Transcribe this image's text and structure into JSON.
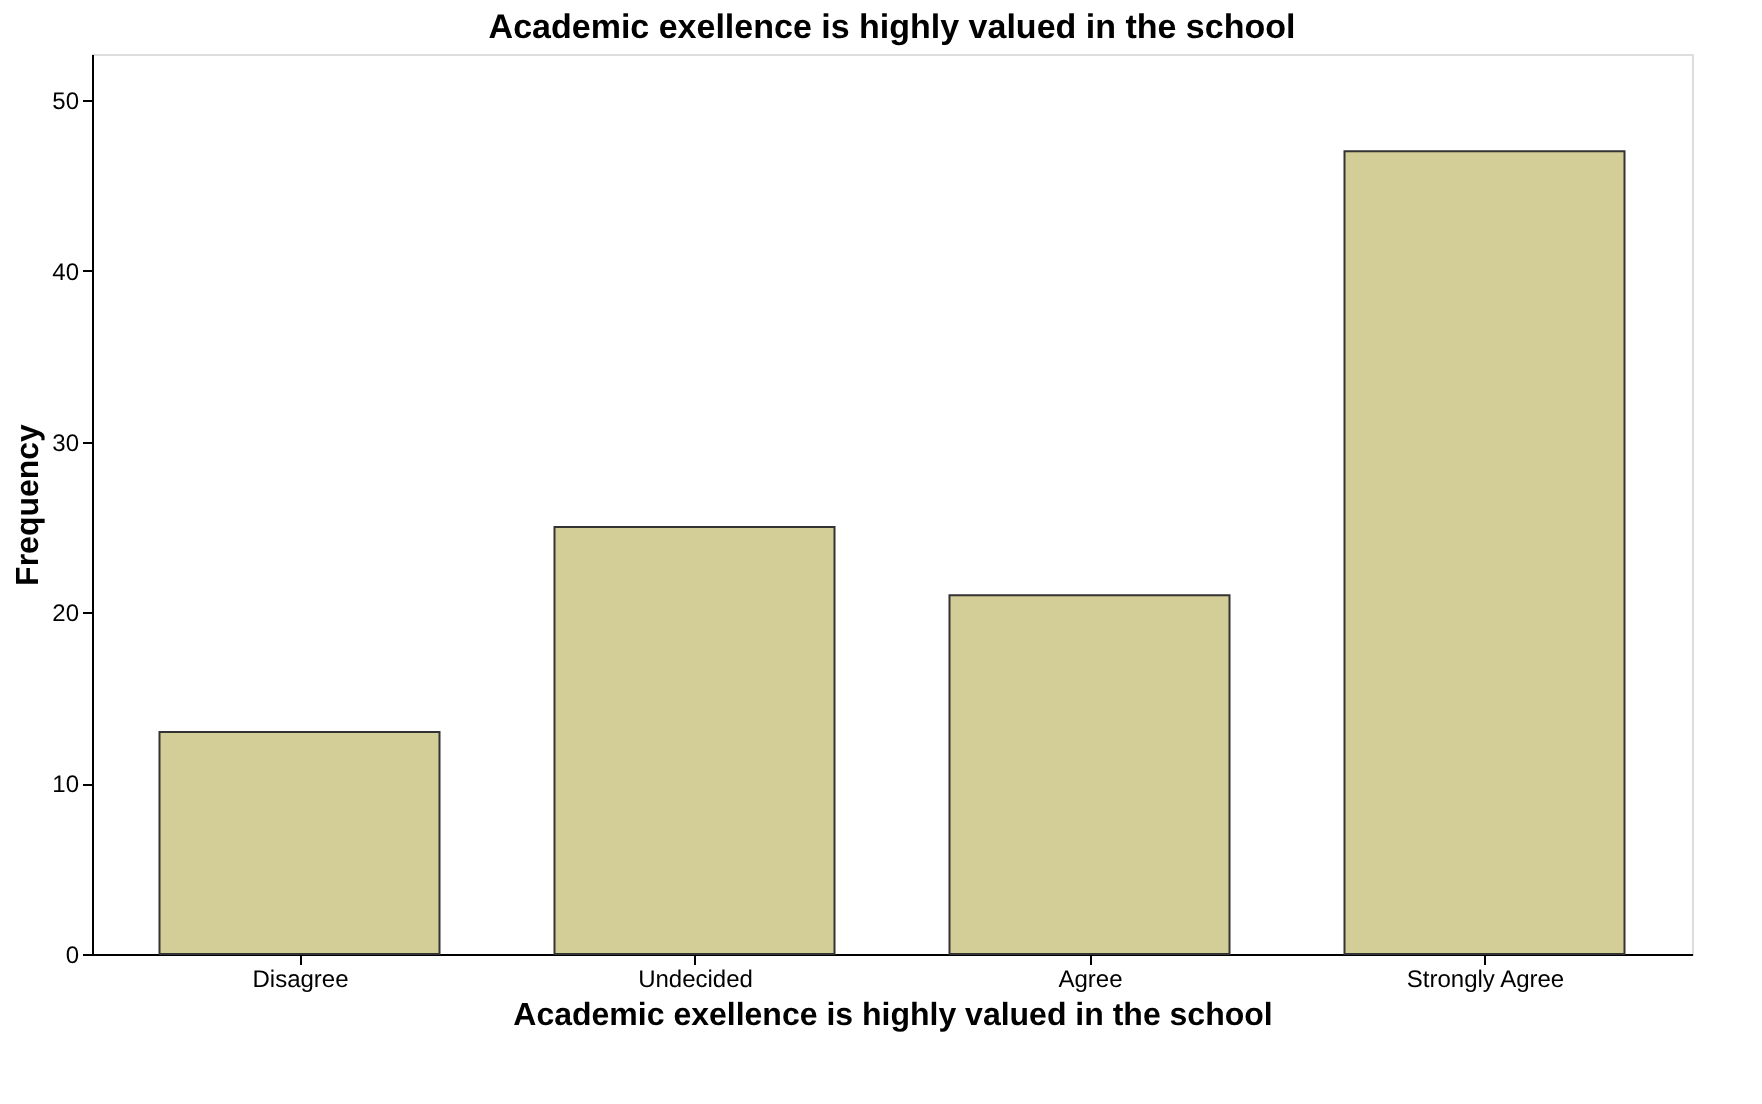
{
  "chart_data": {
    "type": "bar",
    "title": "Academic exellence is highly valued in the school",
    "xlabel": "Academic exellence is highly valued in the school",
    "ylabel": "Frequency",
    "categories": [
      "Disagree",
      "Undecided",
      "Agree",
      "Strongly Agree"
    ],
    "values": [
      13,
      25,
      21,
      47
    ],
    "color": "#d3cd97",
    "ylim": [
      0,
      52.7
    ],
    "yticks": [
      0,
      10,
      20,
      30,
      40,
      50
    ],
    "grid": false
  }
}
